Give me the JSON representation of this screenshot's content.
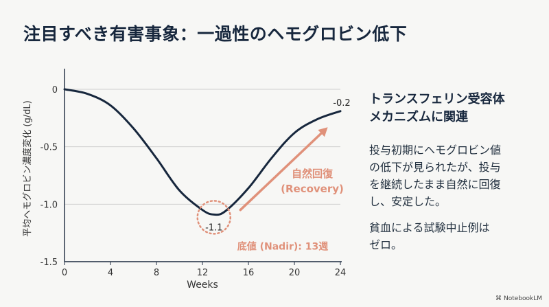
{
  "slide": {
    "title": "注目すべき有害事象：一過性のヘモグロビン低下",
    "side_heading_line1": "トランスフェリン受容体",
    "side_heading_line2": "メカニズムに関連",
    "side_body_lines": [
      "投与初期にヘモグロビン値",
      "の低下が見られたが、投与",
      "を継続したまま自然に回復",
      "し、安定した。"
    ],
    "side_note_lines": [
      "貧血による試験中止例は",
      "ゼロ。"
    ],
    "brand_icon": "notebook-icon",
    "brand_label": "NotebookLM"
  },
  "colors": {
    "line": "#17273d",
    "accent": "#e0917a",
    "grid": "#cfcfcf",
    "axis": "#1c2a3e"
  },
  "chart_data": {
    "type": "line",
    "title": "",
    "xlabel": "Weeks",
    "ylabel": "平均ヘモグロビン濃度変化 (g/dL)",
    "xlim": [
      0,
      24
    ],
    "ylim": [
      -1.5,
      0
    ],
    "xticks": [
      0,
      4,
      8,
      12,
      16,
      20,
      24
    ],
    "yticks": [
      0,
      -0.5,
      -1.0,
      -1.5
    ],
    "ytick_labels": [
      "0",
      "-0.5",
      "-1.0",
      "-1.5"
    ],
    "series": [
      {
        "name": "Hb change",
        "x": [
          0,
          2,
          4,
          6,
          8,
          10,
          12,
          13,
          14,
          16,
          18,
          20,
          22,
          24
        ],
        "y": [
          0,
          -0.04,
          -0.14,
          -0.34,
          -0.6,
          -0.88,
          -1.05,
          -1.09,
          -1.06,
          -0.86,
          -0.6,
          -0.38,
          -0.26,
          -0.19
        ]
      }
    ],
    "annotations": {
      "nadir_value_label": "-1.1",
      "nadir_text": "底値 (Nadir): 13週",
      "recovery_line1": "自然回復",
      "recovery_line2": "(Recovery)",
      "end_value_label": "-0.2",
      "nadir_point": {
        "x": 13,
        "y": -1.09
      },
      "arrow_from": {
        "x": 15.3,
        "y": -1.05
      },
      "arrow_to": {
        "x": 22.9,
        "y": -0.33
      }
    }
  }
}
